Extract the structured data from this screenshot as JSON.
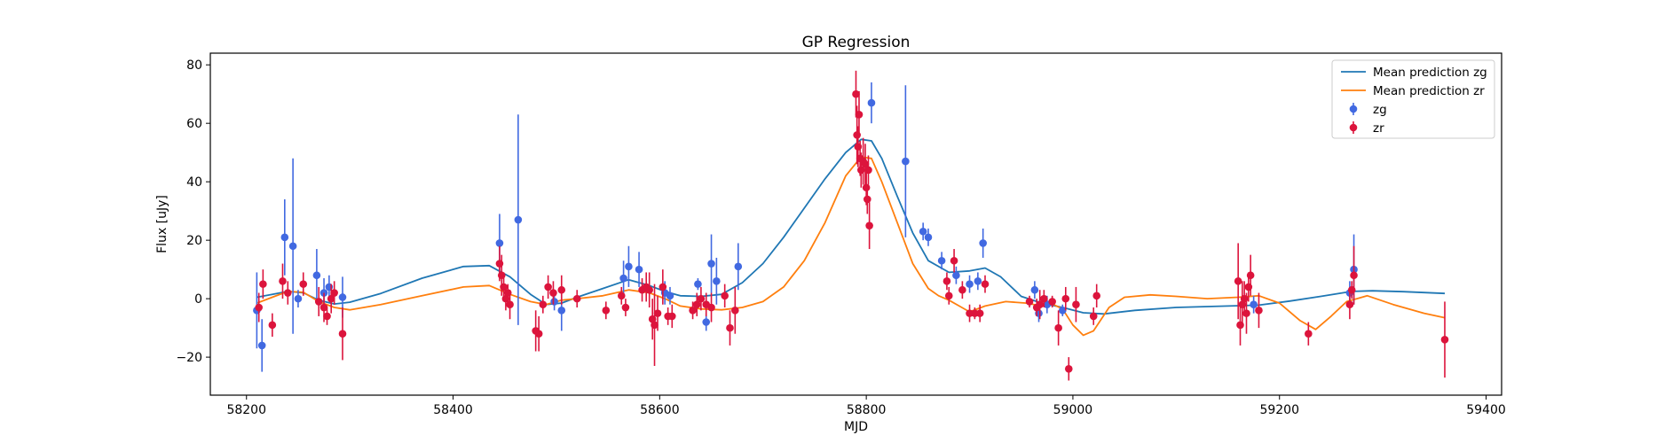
{
  "chart_data": {
    "type": "line",
    "title": "GP Regression",
    "xlabel": "MJD",
    "ylabel": "Flux [uJy]",
    "xlim": [
      58165,
      59415
    ],
    "ylim": [
      -33,
      84
    ],
    "xticks": [
      58200,
      58400,
      58600,
      58800,
      59000,
      59200,
      59400
    ],
    "yticks": [
      -20,
      0,
      20,
      40,
      60,
      80
    ],
    "grid": false,
    "legend_position": "top-right",
    "colors": {
      "zg": "#4169e1",
      "zr": "#dc143c",
      "pred_zg": "#1f77b4",
      "pred_zr": "#ff7f0e"
    },
    "series": [
      {
        "name": "Mean prediction zg",
        "kind": "line",
        "color_key": "pred_zg",
        "x": [
          58210,
          58225,
          58240,
          58255,
          58270,
          58285,
          58300,
          58330,
          58370,
          58410,
          58435,
          58455,
          58475,
          58490,
          58505,
          58520,
          58545,
          58570,
          58590,
          58605,
          58620,
          58640,
          58660,
          58680,
          58700,
          58720,
          58740,
          58760,
          58780,
          58795,
          58805,
          58815,
          58830,
          58845,
          58860,
          58880,
          58900,
          58915,
          58930,
          58950,
          58970,
          58990,
          59010,
          59030,
          59060,
          59100,
          59150,
          59180,
          59210,
          59240,
          59270,
          59290,
          59320,
          59360
        ],
        "y": [
          0.5,
          1.5,
          2.5,
          2.0,
          -0.5,
          -1.8,
          -1.2,
          1.8,
          7.0,
          11.0,
          11.3,
          7.5,
          1.5,
          -2.0,
          -1.5,
          0.5,
          3.5,
          6.5,
          4.5,
          2.5,
          1.0,
          0.8,
          1.5,
          5.5,
          12.0,
          21.0,
          31.0,
          41.0,
          50.0,
          54.5,
          54.0,
          48.0,
          35.0,
          22.5,
          13.0,
          9.0,
          9.5,
          10.5,
          7.5,
          0.8,
          -1.5,
          -3.0,
          -4.8,
          -5.2,
          -4.0,
          -3.0,
          -2.5,
          -2.2,
          -0.8,
          0.8,
          2.5,
          2.7,
          2.4,
          1.8
        ]
      },
      {
        "name": "Mean prediction zr",
        "kind": "line",
        "color_key": "pred_zr",
        "x": [
          58210,
          58225,
          58240,
          58255,
          58270,
          58285,
          58300,
          58330,
          58370,
          58410,
          58435,
          58455,
          58475,
          58490,
          58505,
          58520,
          58545,
          58570,
          58590,
          58605,
          58620,
          58640,
          58660,
          58680,
          58700,
          58720,
          58740,
          58760,
          58780,
          58795,
          58805,
          58815,
          58830,
          58845,
          58860,
          58870,
          58880,
          58890,
          58900,
          58915,
          58935,
          58955,
          58970,
          58980,
          58990,
          59000,
          59010,
          59020,
          59035,
          59050,
          59075,
          59100,
          59130,
          59160,
          59180,
          59200,
          59220,
          59235,
          59250,
          59265,
          59285,
          59310,
          59340,
          59360
        ],
        "y": [
          -1.5,
          0.5,
          2.5,
          2.2,
          -1.0,
          -3.0,
          -3.8,
          -2.0,
          1.0,
          4.0,
          4.5,
          1.5,
          -1.0,
          -2.0,
          -0.5,
          0.0,
          1.0,
          3.0,
          2.0,
          0.0,
          -2.5,
          -3.5,
          -3.8,
          -3.0,
          -1.0,
          4.0,
          13.0,
          26.0,
          42.0,
          48.5,
          48.0,
          40.0,
          26.0,
          12.0,
          3.5,
          1.0,
          -0.5,
          -2.5,
          -4.5,
          -2.5,
          -1.0,
          -1.5,
          -2.5,
          -1.8,
          -3.5,
          -9.0,
          -12.5,
          -11.0,
          -3.0,
          0.5,
          1.3,
          0.8,
          0.0,
          0.5,
          1.0,
          -1.5,
          -7.5,
          -10.5,
          -6.0,
          -1.0,
          1.0,
          -2.0,
          -5.0,
          -6.5
        ]
      },
      {
        "name": "zg",
        "kind": "errorbar",
        "color_key": "zg",
        "points": [
          [
            58210,
            -4,
            13
          ],
          [
            58215,
            -16,
            9
          ],
          [
            58237,
            21,
            13
          ],
          [
            58245,
            18,
            30
          ],
          [
            58250,
            0,
            3
          ],
          [
            58268,
            8,
            9
          ],
          [
            58275,
            2,
            5
          ],
          [
            58280,
            4,
            4
          ],
          [
            58293,
            0.5,
            7
          ],
          [
            58445,
            19,
            10
          ],
          [
            58463,
            27,
            36
          ],
          [
            58498,
            -1,
            3
          ],
          [
            58505,
            -4,
            7
          ],
          [
            58565,
            7,
            6
          ],
          [
            58570,
            11,
            7
          ],
          [
            58580,
            10,
            6
          ],
          [
            58605,
            2,
            4
          ],
          [
            58610,
            1,
            3
          ],
          [
            58637,
            5,
            2
          ],
          [
            58645,
            -8,
            3
          ],
          [
            58650,
            12,
            10
          ],
          [
            58655,
            6,
            8
          ],
          [
            58676,
            11,
            8
          ],
          [
            58805,
            67,
            7
          ],
          [
            58838,
            47,
            26
          ],
          [
            58855,
            23,
            3
          ],
          [
            58860,
            21,
            3
          ],
          [
            58873,
            13,
            3
          ],
          [
            58887,
            8,
            3
          ],
          [
            58900,
            5,
            3
          ],
          [
            58908,
            6,
            3
          ],
          [
            58913,
            19,
            5
          ],
          [
            58963,
            3,
            3
          ],
          [
            58967,
            -5,
            3
          ],
          [
            58975,
            -2,
            3
          ],
          [
            58990,
            -4,
            2
          ],
          [
            59175,
            -2,
            3
          ],
          [
            59268,
            2,
            4
          ],
          [
            59272,
            10,
            12
          ]
        ]
      },
      {
        "name": "zr",
        "kind": "errorbar",
        "color_key": "zr",
        "points": [
          [
            58212,
            -3,
            5
          ],
          [
            58216,
            5,
            5
          ],
          [
            58225,
            -9,
            4
          ],
          [
            58235,
            6,
            6
          ],
          [
            58240,
            2,
            4
          ],
          [
            58255,
            5,
            4
          ],
          [
            58270,
            -1,
            5
          ],
          [
            58275,
            -3,
            5
          ],
          [
            58278,
            -6,
            3
          ],
          [
            58282,
            0,
            5
          ],
          [
            58285,
            2,
            4
          ],
          [
            58293,
            -12,
            9
          ],
          [
            58445,
            12,
            6
          ],
          [
            58447,
            8,
            7
          ],
          [
            58449,
            4,
            5
          ],
          [
            58451,
            0,
            4
          ],
          [
            58453,
            2,
            3
          ],
          [
            58455,
            -2,
            5
          ],
          [
            58480,
            -11,
            7
          ],
          [
            58483,
            -12,
            6
          ],
          [
            58487,
            -2,
            3
          ],
          [
            58492,
            4,
            4
          ],
          [
            58497,
            2,
            4
          ],
          [
            58505,
            3,
            5
          ],
          [
            58520,
            0,
            3
          ],
          [
            58548,
            -4,
            3
          ],
          [
            58563,
            1,
            3
          ],
          [
            58567,
            -3,
            3
          ],
          [
            58583,
            3,
            4
          ],
          [
            58587,
            4,
            5
          ],
          [
            58590,
            3,
            6
          ],
          [
            58593,
            -7,
            7
          ],
          [
            58595,
            -9,
            14
          ],
          [
            58598,
            -5,
            6
          ],
          [
            58603,
            4,
            6
          ],
          [
            58608,
            -6,
            3
          ],
          [
            58612,
            -6,
            4
          ],
          [
            58632,
            -4,
            3
          ],
          [
            58636,
            -2,
            4
          ],
          [
            58640,
            0,
            4
          ],
          [
            58645,
            -2,
            4
          ],
          [
            58650,
            -3,
            5
          ],
          [
            58663,
            1,
            4
          ],
          [
            58668,
            -10,
            6
          ],
          [
            58673,
            -4,
            8
          ],
          [
            58790,
            70,
            8
          ],
          [
            58791,
            56,
            10
          ],
          [
            58792,
            52,
            7
          ],
          [
            58793,
            63,
            8
          ],
          [
            58794,
            48,
            6
          ],
          [
            58795,
            44,
            6
          ],
          [
            58797,
            47,
            8
          ],
          [
            58799,
            46,
            7
          ],
          [
            58800,
            38,
            6
          ],
          [
            58801,
            34,
            5
          ],
          [
            58802,
            44,
            5
          ],
          [
            58803,
            25,
            8
          ],
          [
            58878,
            6,
            3
          ],
          [
            58880,
            1,
            3
          ],
          [
            58885,
            13,
            4
          ],
          [
            58893,
            3,
            3
          ],
          [
            58900,
            -5,
            3
          ],
          [
            58905,
            -5,
            2
          ],
          [
            58910,
            -5,
            3
          ],
          [
            58915,
            5,
            3
          ],
          [
            58958,
            -1,
            2
          ],
          [
            58965,
            -3,
            3
          ],
          [
            58968,
            -2,
            5
          ],
          [
            58972,
            0,
            3
          ],
          [
            58980,
            -1,
            2
          ],
          [
            58986,
            -10,
            6
          ],
          [
            58993,
            0,
            4
          ],
          [
            58996,
            -24,
            4
          ],
          [
            59003,
            -2,
            6
          ],
          [
            59020,
            -6,
            3
          ],
          [
            59023,
            1,
            4
          ],
          [
            59160,
            6,
            13
          ],
          [
            59162,
            -9,
            7
          ],
          [
            59164,
            -2,
            8
          ],
          [
            59166,
            0,
            6
          ],
          [
            59168,
            -5,
            7
          ],
          [
            59170,
            4,
            5
          ],
          [
            59172,
            8,
            7
          ],
          [
            59180,
            -4,
            6
          ],
          [
            59228,
            -12,
            4
          ],
          [
            59268,
            -2,
            5
          ],
          [
            59270,
            3,
            3
          ],
          [
            59272,
            8,
            10
          ],
          [
            59360,
            -14,
            13
          ]
        ]
      }
    ]
  }
}
